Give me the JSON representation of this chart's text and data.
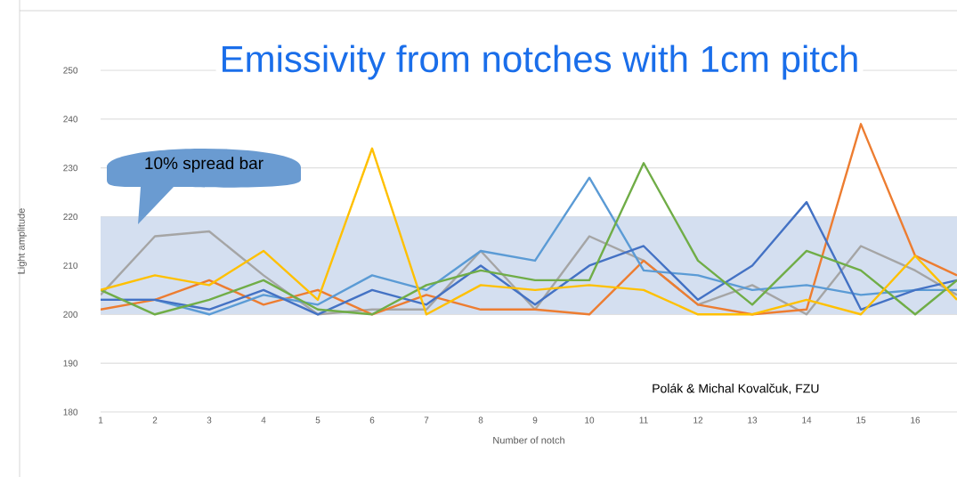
{
  "chart_data": {
    "type": "line",
    "title": "Emissivity from notches with 1cm pitch",
    "xlabel": "Number of notch",
    "ylabel": "Light amplitude",
    "x": [
      1,
      2,
      3,
      4,
      5,
      6,
      7,
      8,
      9,
      10,
      11,
      12,
      13,
      14,
      15,
      16,
      16.77
    ],
    "series": [
      {
        "color": "#a5a5a5",
        "values": [
          204,
          216,
          217,
          208,
          200,
          201,
          201,
          213,
          201,
          216,
          211,
          202,
          206,
          200,
          214,
          209,
          204
        ]
      },
      {
        "color": "#ed7d31",
        "values": [
          201,
          203,
          207,
          202,
          205,
          200,
          204,
          201,
          201,
          200,
          211,
          202,
          200,
          201,
          239,
          212,
          208
        ]
      },
      {
        "color": "#5b9bd5",
        "values": [
          203,
          203,
          200,
          204,
          202,
          208,
          205,
          213,
          211,
          228,
          209,
          208,
          205,
          206,
          204,
          205,
          205
        ]
      },
      {
        "color": "#4472c4",
        "values": [
          203,
          203,
          201,
          205,
          200,
          205,
          202,
          210,
          202,
          210,
          214,
          203,
          210,
          223,
          201,
          205,
          207
        ]
      },
      {
        "color": "#70ad47",
        "values": [
          205,
          200,
          203,
          207,
          201,
          200,
          206,
          209,
          207,
          207,
          231,
          211,
          202,
          213,
          209,
          200,
          207
        ]
      },
      {
        "color": "#ffc000",
        "values": [
          205,
          208,
          206,
          213,
          203,
          234,
          200,
          206,
          205,
          206,
          205,
          200,
          200,
          203,
          200,
          212,
          203
        ]
      }
    ],
    "xlim": [
      1,
      16.77
    ],
    "ylim": [
      180,
      250
    ],
    "xticks": [
      1,
      2,
      3,
      4,
      5,
      6,
      7,
      8,
      9,
      10,
      11,
      12,
      13,
      14,
      15,
      16
    ],
    "yticks": [
      180,
      190,
      200,
      210,
      220,
      230,
      240,
      250
    ],
    "bands": [
      {
        "axis": "y",
        "from": 200,
        "to": 220,
        "label": "10% spread bar",
        "color": "#d4dff0"
      }
    ],
    "annotations": [
      "Polák & Michal Kovalčuk, FZU"
    ],
    "grid": "y",
    "marker": "none",
    "line_style": "solid"
  }
}
